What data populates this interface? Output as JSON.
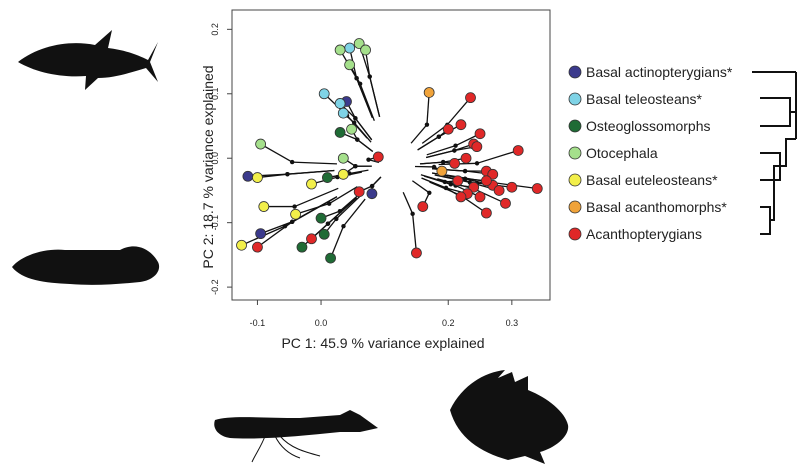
{
  "chart_data": {
    "type": "scatter",
    "xlabel": "PC 1: 45.9 % variance explained",
    "ylabel": "PC 2: 18.7 % variance explained",
    "xlim": [
      -0.14,
      0.36
    ],
    "ylim": [
      -0.22,
      0.23
    ],
    "x_ticks": [
      {
        "value": -0.1,
        "label": "-0.1"
      },
      {
        "value": 0.0,
        "label": "0.0"
      },
      {
        "value": 0.2,
        "label": "0.2"
      },
      {
        "value": 0.3,
        "label": "0.3"
      }
    ],
    "y_ticks": [
      {
        "value": -0.2,
        "label": "-0.2"
      },
      {
        "value": -0.1,
        "label": "-0.1"
      },
      {
        "value": 0.0,
        "label": "0.0"
      },
      {
        "value": 0.1,
        "label": "0.1"
      },
      {
        "value": 0.2,
        "label": "0.2"
      }
    ],
    "grid": false,
    "legend_position": "right",
    "series": [
      {
        "name": "Basal actinopterygians*",
        "color": "#3b3a8c",
        "points": [
          [
            -0.115,
            -0.028
          ],
          [
            -0.095,
            -0.117
          ],
          [
            0.04,
            0.088
          ],
          [
            0.08,
            -0.055
          ]
        ]
      },
      {
        "name": "Basal teleosteans*",
        "color": "#7fd3e6",
        "points": [
          [
            0.005,
            0.1
          ],
          [
            0.035,
            0.07
          ],
          [
            0.045,
            0.171
          ],
          [
            0.03,
            0.085
          ]
        ]
      },
      {
        "name": "Osteoglossomorphs",
        "color": "#1f6b35",
        "points": [
          [
            0.03,
            0.04
          ],
          [
            0.01,
            -0.03
          ],
          [
            0.0,
            -0.093
          ],
          [
            -0.03,
            -0.138
          ],
          [
            0.015,
            -0.155
          ],
          [
            0.005,
            -0.118
          ]
        ]
      },
      {
        "name": "Otocephala",
        "color": "#a5e08c",
        "points": [
          [
            0.03,
            0.168
          ],
          [
            0.06,
            0.178
          ],
          [
            0.07,
            0.168
          ],
          [
            0.045,
            0.145
          ],
          [
            0.048,
            0.045
          ],
          [
            -0.095,
            0.022
          ],
          [
            0.035,
            0.0
          ]
        ]
      },
      {
        "name": "Basal euteleosteans*",
        "color": "#f2ef4a",
        "points": [
          [
            -0.1,
            -0.03
          ],
          [
            -0.09,
            -0.075
          ],
          [
            -0.125,
            -0.135
          ],
          [
            -0.04,
            -0.087
          ],
          [
            0.035,
            -0.025
          ],
          [
            -0.015,
            -0.04
          ]
        ]
      },
      {
        "name": "Basal acanthomorphs*",
        "color": "#f0a33a",
        "points": [
          [
            0.17,
            0.102
          ],
          [
            0.19,
            -0.02
          ]
        ]
      },
      {
        "name": "Acanthopterygians",
        "color": "#e02828",
        "points": [
          [
            0.235,
            0.094
          ],
          [
            0.2,
            0.045
          ],
          [
            0.22,
            0.052
          ],
          [
            0.24,
            0.022
          ],
          [
            0.228,
            0.0
          ],
          [
            0.245,
            0.018
          ],
          [
            0.25,
            0.038
          ],
          [
            0.21,
            -0.008
          ],
          [
            0.215,
            -0.035
          ],
          [
            0.24,
            -0.045
          ],
          [
            0.23,
            -0.055
          ],
          [
            0.26,
            -0.02
          ],
          [
            0.27,
            -0.025
          ],
          [
            0.27,
            -0.042
          ],
          [
            0.28,
            -0.05
          ],
          [
            0.29,
            -0.07
          ],
          [
            0.25,
            -0.06
          ],
          [
            0.26,
            -0.085
          ],
          [
            0.22,
            -0.06
          ],
          [
            0.16,
            -0.075
          ],
          [
            0.15,
            -0.147
          ],
          [
            0.09,
            0.002
          ],
          [
            0.06,
            -0.052
          ],
          [
            -0.1,
            -0.138
          ],
          [
            -0.015,
            -0.125
          ],
          [
            0.26,
            -0.035
          ],
          [
            0.3,
            -0.045
          ],
          [
            0.31,
            0.012
          ],
          [
            0.34,
            -0.047
          ]
        ]
      }
    ]
  }
}
